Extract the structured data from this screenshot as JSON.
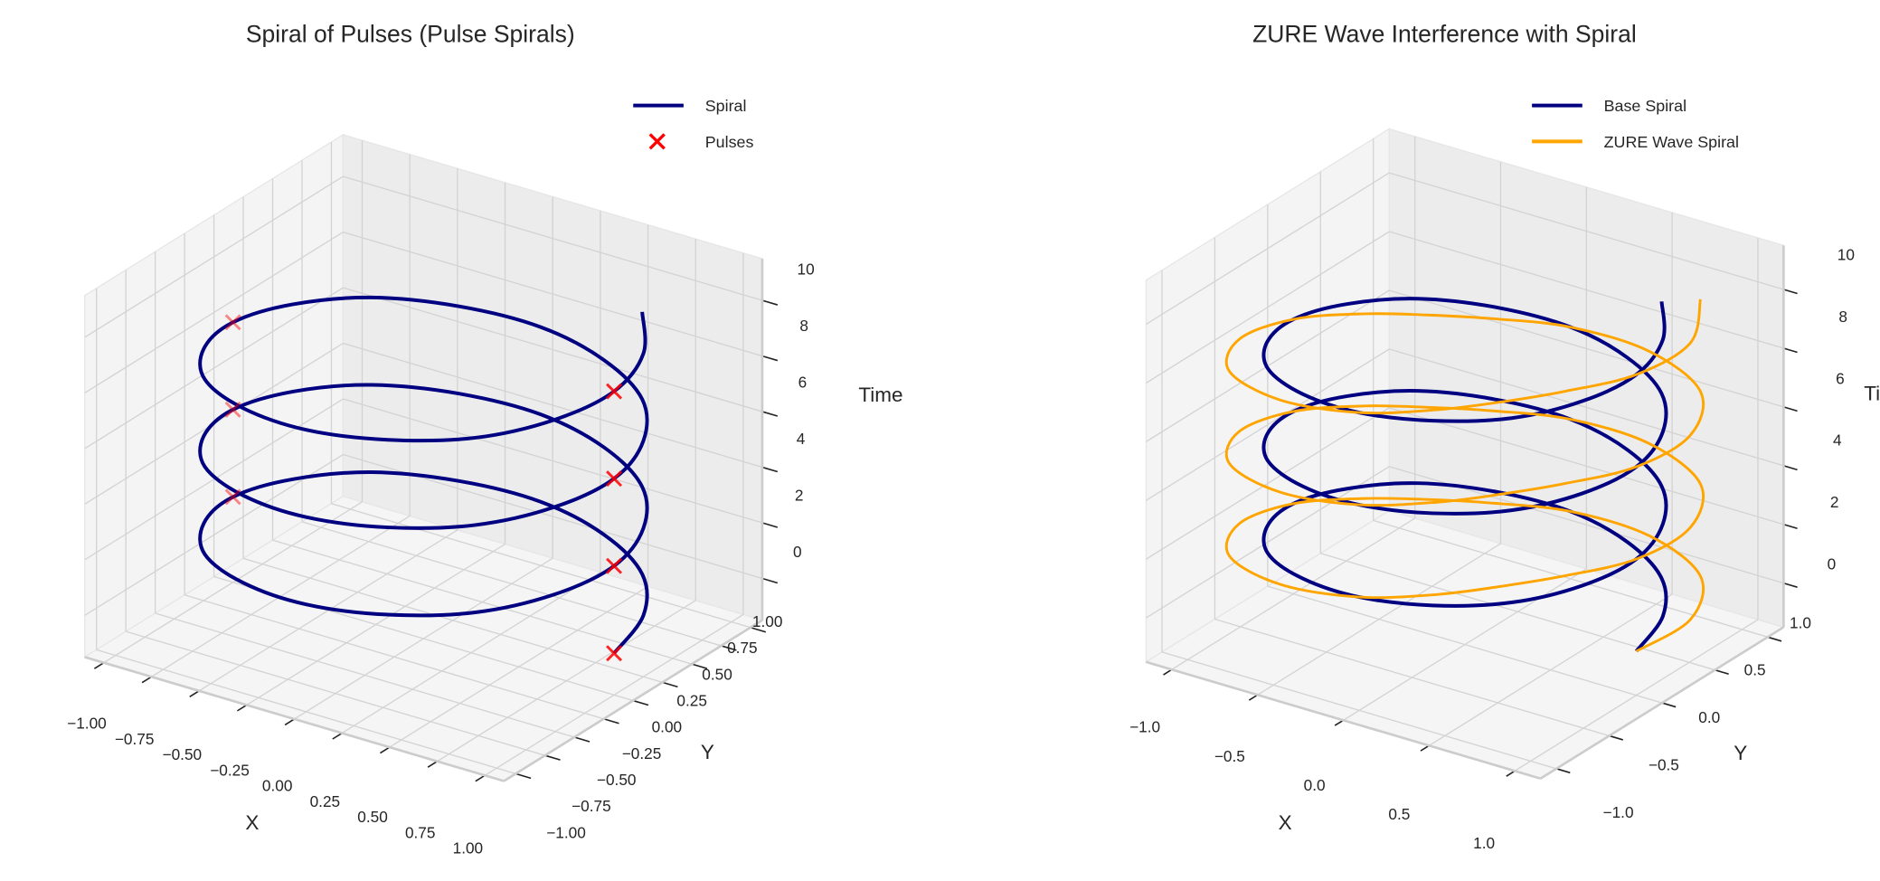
{
  "chart_data": [
    {
      "type": "line3d",
      "title": "Spiral of Pulses (Pulse Spirals)",
      "xlabel": "X",
      "ylabel": "Y",
      "zlabel": "Time",
      "xlim": [
        -1.1,
        1.1
      ],
      "ylim": [
        -1.1,
        1.1
      ],
      "zlim": [
        -1.5,
        11.5
      ],
      "xticks": [
        "−1.00",
        "−0.75",
        "−0.50",
        "−0.25",
        "0.00",
        "0.25",
        "0.50",
        "0.75",
        "1.00"
      ],
      "yticks": [
        "−1.00",
        "−0.75",
        "−0.50",
        "−0.25",
        "0.00",
        "0.25",
        "0.50",
        "0.75",
        "1.00"
      ],
      "zticks": [
        "0",
        "2",
        "4",
        "6",
        "8",
        "10"
      ],
      "grid": true,
      "legend_position": "top-right",
      "series": [
        {
          "name": "Spiral",
          "kind": "line",
          "color": "#000080",
          "x": [
            1,
            0.92,
            0.71,
            0.38,
            0,
            -0.38,
            -0.71,
            -0.92,
            -1,
            -0.92,
            -0.71,
            -0.38,
            0,
            0.38,
            0.71,
            0.92,
            1,
            0.92,
            0.71,
            0.38,
            0,
            -0.38,
            -0.71,
            -0.92,
            -1,
            -0.92,
            -0.71,
            -0.38,
            0,
            0.38,
            0.71,
            0.92,
            1,
            0.92,
            0.71,
            0.38,
            0,
            -0.38,
            -0.71,
            -0.92,
            -1,
            -0.92,
            -0.71,
            -0.38,
            0,
            0.38,
            0.71,
            0.92,
            1,
            0.92,
            0.71
          ],
          "y": [
            0,
            0.38,
            0.71,
            0.92,
            1,
            0.92,
            0.71,
            0.38,
            0,
            -0.38,
            -0.71,
            -0.92,
            -1,
            -0.92,
            -0.71,
            -0.38,
            0,
            0.38,
            0.71,
            0.92,
            1,
            0.92,
            0.71,
            0.38,
            0,
            -0.38,
            -0.71,
            -0.92,
            -1,
            -0.92,
            -0.71,
            -0.38,
            0,
            0.38,
            0.71,
            0.92,
            1,
            0.92,
            0.71,
            0.38,
            0,
            -0.38,
            -0.71,
            -0.92,
            -1,
            -0.92,
            -0.71,
            -0.38,
            0,
            0.38,
            0.71
          ],
          "z": [
            0,
            0.2,
            0.39,
            0.59,
            0.79,
            0.98,
            1.18,
            1.37,
            1.57,
            1.77,
            1.96,
            2.16,
            2.36,
            2.55,
            2.75,
            2.95,
            3.14,
            3.34,
            3.53,
            3.73,
            3.93,
            4.12,
            4.32,
            4.52,
            4.71,
            4.91,
            5.11,
            5.3,
            5.5,
            5.69,
            5.89,
            6.09,
            6.28,
            6.48,
            6.68,
            6.87,
            7.07,
            7.26,
            7.46,
            7.66,
            7.85,
            8.05,
            8.25,
            8.44,
            8.64,
            8.84,
            9.03,
            9.23,
            9.42,
            9.62,
            9.82
          ]
        },
        {
          "name": "Pulses",
          "kind": "scatter",
          "marker": "x",
          "color": "#ff0000",
          "x": [
            1,
            -1,
            1,
            -1,
            1,
            -1,
            1
          ],
          "y": [
            0,
            0,
            0,
            0,
            0,
            0,
            0
          ],
          "z": [
            0,
            1.57,
            3.14,
            4.71,
            6.28,
            7.85,
            9.42
          ]
        }
      ]
    },
    {
      "type": "line3d",
      "title": "ZURE Wave Interference with Spiral",
      "xlabel": "X",
      "ylabel": "Y",
      "zlabel": "Time",
      "xlim": [
        -1.15,
        1.15
      ],
      "ylim": [
        -1.15,
        1.15
      ],
      "zlim": [
        -1.5,
        11.5
      ],
      "xticks": [
        "−1.0",
        "−0.5",
        "0.0",
        "0.5",
        "1.0"
      ],
      "yticks": [
        "−1.0",
        "−0.5",
        "0.0",
        "0.5",
        "1.0"
      ],
      "zticks": [
        "0",
        "2",
        "4",
        "6",
        "8",
        "10"
      ],
      "grid": true,
      "legend_position": "top-right",
      "series": [
        {
          "name": "Base Spiral",
          "kind": "line",
          "color": "#000080",
          "x": [
            1,
            0.92,
            0.71,
            0.38,
            0,
            -0.38,
            -0.71,
            -0.92,
            -1,
            -0.92,
            -0.71,
            -0.38,
            0,
            0.38,
            0.71,
            0.92,
            1,
            0.92,
            0.71,
            0.38,
            0,
            -0.38,
            -0.71,
            -0.92,
            -1,
            -0.92,
            -0.71,
            -0.38,
            0,
            0.38,
            0.71,
            0.92,
            1,
            0.92,
            0.71,
            0.38,
            0,
            -0.38,
            -0.71,
            -0.92,
            -1,
            -0.92,
            -0.71,
            -0.38,
            0,
            0.38,
            0.71,
            0.92,
            1,
            0.92,
            0.71
          ],
          "y": [
            0,
            0.38,
            0.71,
            0.92,
            1,
            0.92,
            0.71,
            0.38,
            0,
            -0.38,
            -0.71,
            -0.92,
            -1,
            -0.92,
            -0.71,
            -0.38,
            0,
            0.38,
            0.71,
            0.92,
            1,
            0.92,
            0.71,
            0.38,
            0,
            -0.38,
            -0.71,
            -0.92,
            -1,
            -0.92,
            -0.71,
            -0.38,
            0,
            0.38,
            0.71,
            0.92,
            1,
            0.92,
            0.71,
            0.38,
            0,
            -0.38,
            -0.71,
            -0.92,
            -1,
            -0.92,
            -0.71,
            -0.38,
            0,
            0.38,
            0.71
          ],
          "z": [
            0,
            0.2,
            0.39,
            0.59,
            0.79,
            0.98,
            1.18,
            1.37,
            1.57,
            1.77,
            1.96,
            2.16,
            2.36,
            2.55,
            2.75,
            2.95,
            3.14,
            3.34,
            3.53,
            3.73,
            3.93,
            4.12,
            4.32,
            4.52,
            4.71,
            4.91,
            5.11,
            5.3,
            5.5,
            5.69,
            5.89,
            6.09,
            6.28,
            6.48,
            6.68,
            6.87,
            7.07,
            7.26,
            7.46,
            7.66,
            7.85,
            8.05,
            8.25,
            8.44,
            8.64,
            8.84,
            9.03,
            9.23,
            9.42,
            9.62,
            9.82
          ]
        },
        {
          "name": "ZURE Wave Spiral",
          "kind": "line",
          "color": "#ffa500",
          "x": [
            1,
            1.05,
            0.85,
            0.43,
            0,
            -0.33,
            -0.57,
            -0.79,
            -1,
            -1.05,
            -0.85,
            -0.43,
            0,
            0.33,
            0.57,
            0.79,
            1,
            1.05,
            0.85,
            0.43,
            0,
            -0.33,
            -0.57,
            -0.79,
            -1,
            -1.05,
            -0.85,
            -0.43,
            0,
            0.33,
            0.57,
            0.79,
            1,
            1.05,
            0.85,
            0.43,
            0,
            -0.33,
            -0.57,
            -0.79,
            -1,
            -1.05,
            -0.85,
            -0.43,
            0,
            0.33,
            0.57,
            0.79,
            1,
            1.05,
            0.85
          ],
          "y": [
            0,
            0.43,
            0.85,
            1.05,
            1,
            0.79,
            0.57,
            0.33,
            0,
            -0.43,
            -0.85,
            -1.05,
            -1,
            -0.79,
            -0.57,
            -0.33,
            0,
            0.43,
            0.85,
            1.05,
            1,
            0.79,
            0.57,
            0.33,
            0,
            -0.43,
            -0.85,
            -1.05,
            -1,
            -0.79,
            -0.57,
            -0.33,
            0,
            0.43,
            0.85,
            1.05,
            1,
            0.79,
            0.57,
            0.33,
            0,
            -0.43,
            -0.85,
            -1.05,
            -1,
            -0.79,
            -0.57,
            -0.33,
            0,
            0.43,
            0.85
          ],
          "z": [
            0,
            0.2,
            0.39,
            0.59,
            0.79,
            0.98,
            1.18,
            1.37,
            1.57,
            1.77,
            1.96,
            2.16,
            2.36,
            2.55,
            2.75,
            2.95,
            3.14,
            3.34,
            3.53,
            3.73,
            3.93,
            4.12,
            4.32,
            4.52,
            4.71,
            4.91,
            5.11,
            5.3,
            5.5,
            5.69,
            5.89,
            6.09,
            6.28,
            6.48,
            6.68,
            6.87,
            7.07,
            7.26,
            7.46,
            7.66,
            7.85,
            8.05,
            8.25,
            8.44,
            8.64,
            8.84,
            9.03,
            9.23,
            9.42,
            9.62,
            9.82
          ]
        }
      ]
    }
  ]
}
